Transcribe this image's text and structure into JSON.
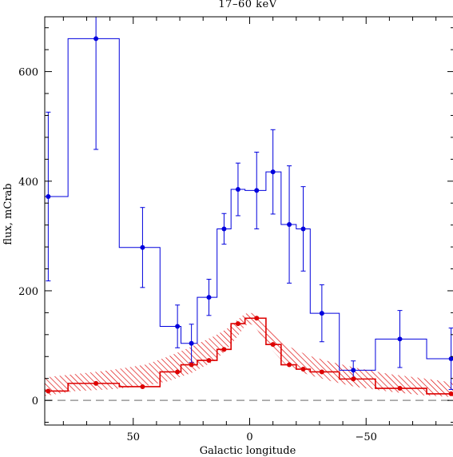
{
  "chart_data": {
    "type": "line",
    "title": "17–60 keV",
    "xlabel": "Galactic longitude",
    "ylabel": "flux, mCrab",
    "xlim": [
      88,
      -88
    ],
    "ylim": [
      -45,
      700
    ],
    "x_ticks": [
      {
        "value": 50,
        "label": "50"
      },
      {
        "value": 0,
        "label": "0"
      },
      {
        "value": -50,
        "label": "−50"
      }
    ],
    "y_ticks": [
      {
        "value": 0,
        "label": "0"
      },
      {
        "value": 200,
        "label": "200"
      },
      {
        "value": 400,
        "label": "400"
      },
      {
        "value": 600,
        "label": "600"
      }
    ],
    "baseline": {
      "y": 0,
      "style": "dashed",
      "color": "#999999"
    },
    "series": [
      {
        "color": "#0000dd",
        "style": "step",
        "points": [
          {
            "x": 86.5,
            "y": 372,
            "err": 154,
            "x0": 88,
            "x1": 78
          },
          {
            "x": 66,
            "y": 660,
            "err": 202,
            "x0": 78,
            "x1": 56
          },
          {
            "x": 46,
            "y": 279,
            "err": 73,
            "x0": 56,
            "x1": 38.5
          },
          {
            "x": 31,
            "y": 135,
            "err": 39,
            "x0": 38.5,
            "x1": 29.5
          },
          {
            "x": 25,
            "y": 104,
            "err": 35,
            "x0": 29.5,
            "x1": 22.5
          },
          {
            "x": 17.5,
            "y": 188,
            "err": 33,
            "x0": 22.5,
            "x1": 14
          },
          {
            "x": 11,
            "y": 313,
            "err": 28,
            "x0": 14,
            "x1": 8
          },
          {
            "x": 5,
            "y": 385,
            "err": 48,
            "x0": 8,
            "x1": 2
          },
          {
            "x": -3,
            "y": 383,
            "err": 70,
            "x0": 2,
            "x1": -7
          },
          {
            "x": -10,
            "y": 417,
            "err": 77,
            "x0": -7,
            "x1": -13.5
          },
          {
            "x": -17,
            "y": 321,
            "err": 107,
            "x0": -13.5,
            "x1": -20
          },
          {
            "x": -23,
            "y": 313,
            "err": 77,
            "x0": -20,
            "x1": -26
          },
          {
            "x": -31,
            "y": 159,
            "err": 52,
            "x0": -26,
            "x1": -38.5
          },
          {
            "x": -44.5,
            "y": 55,
            "err": 17,
            "x0": -38.5,
            "x1": -54
          },
          {
            "x": -64.5,
            "y": 112,
            "err": 52,
            "x0": -54,
            "x1": -76
          },
          {
            "x": -86.5,
            "y": 76,
            "err": 56,
            "x0": -76,
            "x1": -88
          }
        ]
      },
      {
        "color": "#dd0000",
        "style": "step",
        "points": [
          {
            "x": 86.5,
            "y": 17,
            "x0": 88,
            "x1": 78
          },
          {
            "x": 66,
            "y": 31,
            "x0": 78,
            "x1": 56
          },
          {
            "x": 46,
            "y": 25,
            "x0": 56,
            "x1": 38.5
          },
          {
            "x": 31,
            "y": 52,
            "x0": 38.5,
            "x1": 29.5
          },
          {
            "x": 25,
            "y": 65,
            "x0": 29.5,
            "x1": 22.5
          },
          {
            "x": 17.5,
            "y": 73,
            "x0": 22.5,
            "x1": 14
          },
          {
            "x": 11,
            "y": 93,
            "x0": 14,
            "x1": 8
          },
          {
            "x": 5,
            "y": 140,
            "x0": 8,
            "x1": 2
          },
          {
            "x": -3,
            "y": 150,
            "x0": 2,
            "x1": -7
          },
          {
            "x": -10,
            "y": 102,
            "x0": -7,
            "x1": -13.5
          },
          {
            "x": -17,
            "y": 65,
            "x0": -13.5,
            "x1": -20
          },
          {
            "x": -23,
            "y": 57,
            "x0": -20,
            "x1": -26
          },
          {
            "x": -31,
            "y": 52,
            "x0": -26,
            "x1": -38.5
          },
          {
            "x": -44.5,
            "y": 39,
            "x0": -38.5,
            "x1": -54
          },
          {
            "x": -64.5,
            "y": 22,
            "x0": -54,
            "x1": -76
          },
          {
            "x": -86.5,
            "y": 12,
            "x0": -76,
            "x1": -88
          }
        ],
        "model_band": {
          "style": "hatched",
          "x": [
            88,
            75,
            60,
            45,
            35,
            25,
            15,
            10,
            5,
            2,
            0,
            -2,
            -5,
            -10,
            -15,
            -25,
            -35,
            -45,
            -60,
            -75,
            -88
          ],
          "low": [
            8,
            17,
            20,
            26,
            35,
            50,
            72,
            92,
            118,
            136,
            140,
            136,
            118,
            90,
            67,
            47,
            35,
            25,
            16,
            9,
            6
          ],
          "high": [
            42,
            48,
            55,
            65,
            80,
            98,
            118,
            130,
            148,
            158,
            160,
            158,
            150,
            128,
            102,
            82,
            70,
            60,
            48,
            40,
            32
          ]
        }
      }
    ]
  }
}
